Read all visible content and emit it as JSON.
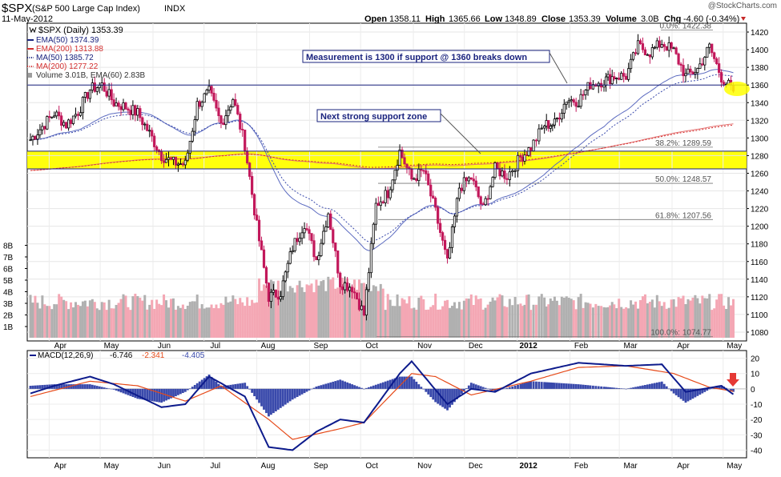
{
  "header": {
    "symbol": "$SPX",
    "name": "(S&P 500 Large Cap Index)",
    "exchange": "INDX",
    "date": "11-May-2012",
    "quote": {
      "open_label": "Open",
      "open": "1358.11",
      "high_label": "High",
      "high": "1365.66",
      "low_label": "Low",
      "low": "1348.89",
      "close_label": "Close",
      "close": "1353.39",
      "volume_label": "Volume",
      "volume": "3.0B",
      "chg_label": "Chg",
      "chg": "-4.60 (-0.34%)"
    },
    "watermark": "@StockCharts.com"
  },
  "legend": {
    "title": "$SPX (Daily) 1353.39",
    "items": [
      {
        "label": "EMA(50) 1374.39",
        "color": "#1a237e",
        "style": "solid"
      },
      {
        "label": "EMA(200) 1313.88",
        "color": "#d32f2f",
        "style": "solid"
      },
      {
        "label": "MA(50) 1385.72",
        "color": "#1a237e",
        "style": "dotted"
      },
      {
        "label": "MA(200) 1277.22",
        "color": "#d32f2f",
        "style": "dotted"
      },
      {
        "label": "Volume 3.01B, EMA(60) 2.83B",
        "color": "#9e9e9e",
        "style": "box"
      }
    ]
  },
  "annotations": {
    "measurement": "Measurement is 1300 if support @ 1360 breaks down",
    "support_zone": "Next strong support zone"
  },
  "fib_levels": [
    {
      "label": "0.0%: 1422.38",
      "value": 1422.38
    },
    {
      "label": "38.2%: 1289.59",
      "value": 1289.59
    },
    {
      "label": "50.0%: 1248.57",
      "value": 1248.57
    },
    {
      "label": "61.8%: 1207.56",
      "value": 1207.56
    },
    {
      "label": "100.0%: 1074.77",
      "value": 1074.77
    }
  ],
  "macd": {
    "label": "MACD(12,26,9)",
    "macd_value": "-6.746",
    "signal_value": "-2.341",
    "hist_value": "-4.405",
    "colors": {
      "macd": "#0d1b8c",
      "signal": "#e64a19",
      "hist": "#3949ab"
    }
  },
  "colors": {
    "up_candle": "#000000",
    "down_candle": "#c2185b",
    "support_band": "#ffff00",
    "horizontal_line": "#1a237e",
    "volume_up": "#b0b0b0",
    "volume_down": "#f4a7b4",
    "annotation_text": "#1a237e",
    "arrow": "#e53935"
  },
  "chart_data": [
    {
      "type": "line",
      "title": "$SPX (Daily)",
      "x_tick_labels": [
        "Apr",
        "May",
        "Jun",
        "Jul",
        "Aug",
        "Sep",
        "Oct",
        "Nov",
        "Dec",
        "2012",
        "Feb",
        "Mar",
        "Apr",
        "May"
      ],
      "y_ticks": [
        1080,
        1100,
        1120,
        1140,
        1160,
        1180,
        1200,
        1220,
        1240,
        1260,
        1280,
        1300,
        1320,
        1340,
        1360,
        1380,
        1400,
        1420
      ],
      "ylim": [
        1070,
        1430
      ],
      "volume_ticks": [
        "1B",
        "2B",
        "3B",
        "4B",
        "5B",
        "6B",
        "7B",
        "8B"
      ],
      "horizontal_lines": [
        1360,
        1285,
        1265
      ],
      "support_band": [
        1265,
        1285
      ],
      "series": [
        {
          "name": "$SPX",
          "points": [
            {
              "x": "2011-03-21",
              "y": 1298
            },
            {
              "x": "2011-03-28",
              "y": 1313
            },
            {
              "x": "2011-04-04",
              "y": 1328
            },
            {
              "x": "2011-04-11",
              "y": 1315
            },
            {
              "x": "2011-04-18",
              "y": 1330
            },
            {
              "x": "2011-04-25",
              "y": 1355
            },
            {
              "x": "2011-05-02",
              "y": 1360
            },
            {
              "x": "2011-05-09",
              "y": 1340
            },
            {
              "x": "2011-05-16",
              "y": 1335
            },
            {
              "x": "2011-05-23",
              "y": 1328
            },
            {
              "x": "2011-05-30",
              "y": 1305
            },
            {
              "x": "2011-06-06",
              "y": 1280
            },
            {
              "x": "2011-06-13",
              "y": 1272
            },
            {
              "x": "2011-06-20",
              "y": 1270
            },
            {
              "x": "2011-06-27",
              "y": 1338
            },
            {
              "x": "2011-07-04",
              "y": 1352
            },
            {
              "x": "2011-07-11",
              "y": 1316
            },
            {
              "x": "2011-07-18",
              "y": 1345
            },
            {
              "x": "2011-07-25",
              "y": 1292
            },
            {
              "x": "2011-08-01",
              "y": 1200
            },
            {
              "x": "2011-08-08",
              "y": 1120
            },
            {
              "x": "2011-08-15",
              "y": 1125
            },
            {
              "x": "2011-08-22",
              "y": 1176
            },
            {
              "x": "2011-08-29",
              "y": 1204
            },
            {
              "x": "2011-09-05",
              "y": 1162
            },
            {
              "x": "2011-09-12",
              "y": 1216
            },
            {
              "x": "2011-09-19",
              "y": 1136
            },
            {
              "x": "2011-09-26",
              "y": 1131
            },
            {
              "x": "2011-10-03",
              "y": 1100
            },
            {
              "x": "2011-10-10",
              "y": 1224
            },
            {
              "x": "2011-10-17",
              "y": 1238
            },
            {
              "x": "2011-10-24",
              "y": 1285
            },
            {
              "x": "2011-10-31",
              "y": 1253
            },
            {
              "x": "2011-11-07",
              "y": 1263
            },
            {
              "x": "2011-11-14",
              "y": 1216
            },
            {
              "x": "2011-11-21",
              "y": 1158
            },
            {
              "x": "2011-11-28",
              "y": 1244
            },
            {
              "x": "2011-12-05",
              "y": 1255
            },
            {
              "x": "2011-12-12",
              "y": 1219
            },
            {
              "x": "2011-12-19",
              "y": 1265
            },
            {
              "x": "2011-12-26",
              "y": 1257
            },
            {
              "x": "2012-01-03",
              "y": 1278
            },
            {
              "x": "2012-01-09",
              "y": 1289
            },
            {
              "x": "2012-01-17",
              "y": 1315
            },
            {
              "x": "2012-01-23",
              "y": 1316
            },
            {
              "x": "2012-01-30",
              "y": 1344
            },
            {
              "x": "2012-02-06",
              "y": 1342
            },
            {
              "x": "2012-02-13",
              "y": 1361
            },
            {
              "x": "2012-02-21",
              "y": 1365
            },
            {
              "x": "2012-02-27",
              "y": 1370
            },
            {
              "x": "2012-03-05",
              "y": 1370
            },
            {
              "x": "2012-03-12",
              "y": 1404
            },
            {
              "x": "2012-03-19",
              "y": 1397
            },
            {
              "x": "2012-03-26",
              "y": 1408
            },
            {
              "x": "2012-04-02",
              "y": 1398
            },
            {
              "x": "2012-04-09",
              "y": 1370
            },
            {
              "x": "2012-04-16",
              "y": 1378
            },
            {
              "x": "2012-04-23",
              "y": 1403
            },
            {
              "x": "2012-04-30",
              "y": 1369
            },
            {
              "x": "2012-05-07",
              "y": 1353
            }
          ]
        }
      ]
    },
    {
      "type": "line",
      "title": "MACD(12,26,9)",
      "y_ticks": [
        20,
        10,
        0,
        -10,
        -20,
        -30,
        -40
      ],
      "ylim": [
        -45,
        25
      ],
      "series": [
        {
          "name": "MACD",
          "points": [
            {
              "x": "2011-03-21",
              "y": -3
            },
            {
              "x": "2011-04-04",
              "y": 2
            },
            {
              "x": "2011-04-25",
              "y": 8
            },
            {
              "x": "2011-05-09",
              "y": 3
            },
            {
              "x": "2011-06-06",
              "y": -12
            },
            {
              "x": "2011-06-20",
              "y": -10
            },
            {
              "x": "2011-07-04",
              "y": 8
            },
            {
              "x": "2011-07-25",
              "y": -5
            },
            {
              "x": "2011-08-08",
              "y": -38
            },
            {
              "x": "2011-08-22",
              "y": -40
            },
            {
              "x": "2011-09-05",
              "y": -28
            },
            {
              "x": "2011-09-19",
              "y": -20
            },
            {
              "x": "2011-10-03",
              "y": -22
            },
            {
              "x": "2011-10-24",
              "y": 10
            },
            {
              "x": "2011-10-31",
              "y": 18
            },
            {
              "x": "2011-11-21",
              "y": -10
            },
            {
              "x": "2011-12-05",
              "y": 0
            },
            {
              "x": "2011-12-19",
              "y": -2
            },
            {
              "x": "2012-01-09",
              "y": 10
            },
            {
              "x": "2012-02-06",
              "y": 17
            },
            {
              "x": "2012-03-05",
              "y": 15
            },
            {
              "x": "2012-03-26",
              "y": 16
            },
            {
              "x": "2012-04-09",
              "y": -2
            },
            {
              "x": "2012-04-30",
              "y": 2
            },
            {
              "x": "2012-05-11",
              "y": -6.746
            }
          ]
        },
        {
          "name": "Signal",
          "points": [
            {
              "x": "2011-03-21",
              "y": -5
            },
            {
              "x": "2011-04-25",
              "y": 5
            },
            {
              "x": "2011-05-23",
              "y": 2
            },
            {
              "x": "2011-06-20",
              "y": -8
            },
            {
              "x": "2011-07-11",
              "y": 2
            },
            {
              "x": "2011-08-08",
              "y": -20
            },
            {
              "x": "2011-08-22",
              "y": -33
            },
            {
              "x": "2011-09-19",
              "y": -26
            },
            {
              "x": "2011-10-03",
              "y": -22
            },
            {
              "x": "2011-10-31",
              "y": 10
            },
            {
              "x": "2011-11-14",
              "y": 8
            },
            {
              "x": "2011-12-05",
              "y": -4
            },
            {
              "x": "2012-01-09",
              "y": 5
            },
            {
              "x": "2012-02-06",
              "y": 14
            },
            {
              "x": "2012-03-05",
              "y": 15
            },
            {
              "x": "2012-04-02",
              "y": 10
            },
            {
              "x": "2012-04-23",
              "y": 1
            },
            {
              "x": "2012-05-11",
              "y": -2.341
            }
          ]
        }
      ]
    }
  ]
}
